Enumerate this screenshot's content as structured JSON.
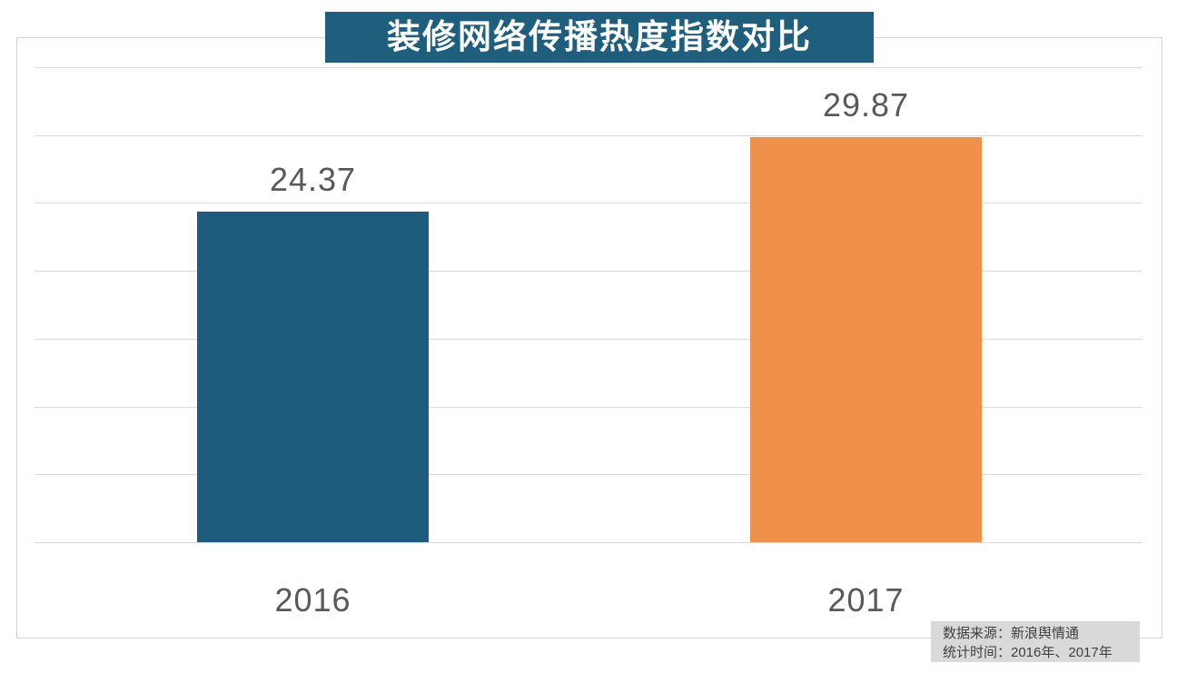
{
  "title": "装修网络传播热度指数对比",
  "source_note": {
    "line1": "数据来源：新浪舆情通",
    "line2": "统计时间：2016年、2017年"
  },
  "colors": {
    "title_background": "#205E7D",
    "bar_2016": "#1E5B7C",
    "bar_2017": "#F0914B",
    "gridline": "#DCDCDC",
    "chart_border": "#D4D4D4",
    "label_text": "#595959",
    "footer_background": "#D9D9D9",
    "footer_text": "#404040"
  },
  "chart_data": {
    "type": "bar",
    "title": "装修网络传播热度指数对比",
    "categories": [
      "2016",
      "2017"
    ],
    "values": [
      24.37,
      29.87
    ],
    "value_labels": [
      "24.37",
      "29.87"
    ],
    "bar_colors": [
      "#1E5B7C",
      "#F0914B"
    ],
    "xlabel": "",
    "ylabel": "",
    "ylim": [
      0,
      35
    ],
    "gridline_step": 5,
    "grid": true,
    "legend": false,
    "y_axis_tick_labels_visible": false
  }
}
